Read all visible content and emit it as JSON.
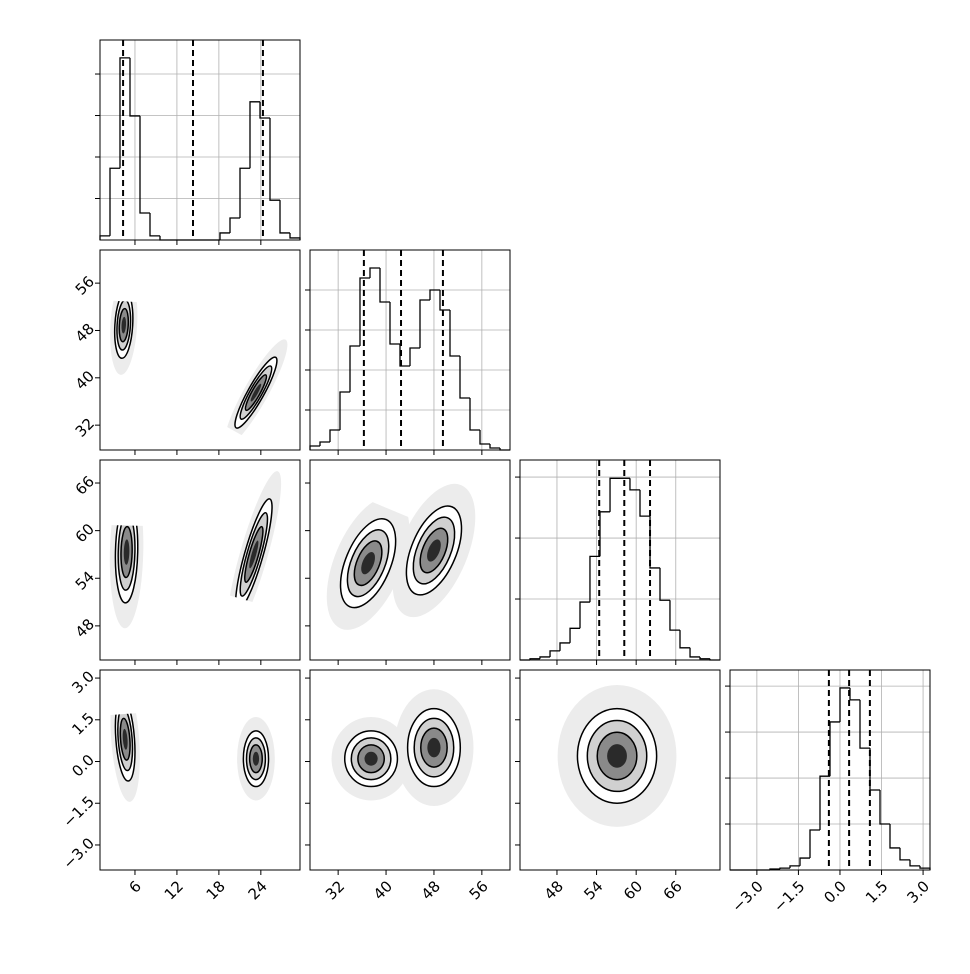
{
  "chart_data": {
    "type": "corner",
    "params": [
      {
        "xlim": [
          1.0,
          29.6
        ],
        "ticks": [
          6,
          12,
          18,
          24
        ],
        "quantiles": [
          4.3,
          14.3,
          24.3
        ],
        "hist": {
          "bins": [
            1.0,
            2.43,
            3.86,
            5.29,
            6.72,
            8.15,
            9.58,
            11.01,
            12.44,
            13.87,
            15.3,
            16.73,
            18.16,
            19.59,
            21.02,
            22.45,
            23.88,
            25.31,
            26.74,
            28.17,
            29.6
          ],
          "counts": [
            0.1,
            1.73,
            4.39,
            2.99,
            0.65,
            0.1,
            0,
            0,
            0,
            0,
            0,
            0,
            0.17,
            0.53,
            1.73,
            3.33,
            2.94,
            0.96,
            0.17,
            0.05
          ],
          "ylim": [
            0,
            4.82
          ],
          "yticks": [
            1,
            2,
            3,
            4
          ]
        }
      },
      {
        "xlim": [
          27.3,
          60.7
        ],
        "ylim": [
          27.8,
          61.6
        ],
        "ticks": [
          32,
          40,
          48,
          56
        ],
        "quantiles": [
          36.3,
          42.5,
          49.5
        ],
        "hist": {
          "bins": [
            27.3,
            28.97,
            30.64,
            32.31,
            33.98,
            35.65,
            37.32,
            38.99,
            40.66,
            42.33,
            44.0,
            45.67,
            47.34,
            49.01,
            50.68,
            52.35,
            54.02,
            55.69,
            57.36,
            59.03,
            60.7
          ],
          "counts": [
            0.1,
            0.2,
            0.5,
            1.45,
            2.6,
            4.3,
            4.55,
            3.7,
            2.65,
            2.1,
            2.55,
            3.75,
            4.0,
            3.5,
            2.35,
            1.3,
            0.5,
            0.15,
            0.05,
            0
          ],
          "ylim": [
            0,
            5
          ],
          "yticks": [
            1,
            2,
            3,
            4
          ]
        }
      },
      {
        "xlim": [
          42.4,
          72.7
        ],
        "ylim": [
          43.7,
          68.9
        ],
        "ticks": [
          48,
          54,
          60,
          66
        ],
        "quantiles": [
          54.4,
          58.2,
          62.1
        ],
        "hist": {
          "bins": [
            42.4,
            43.92,
            45.43,
            46.95,
            48.46,
            49.98,
            51.49,
            53.0,
            54.52,
            56.04,
            57.55,
            59.06,
            60.58,
            62.1,
            63.61,
            65.12,
            66.64,
            68.16,
            69.67,
            71.18,
            72.7
          ],
          "counts": [
            0,
            0.02,
            0.05,
            0.15,
            0.28,
            0.52,
            0.95,
            1.7,
            2.43,
            2.98,
            2.98,
            2.79,
            2.36,
            1.51,
            0.98,
            0.49,
            0.2,
            0.05,
            0.02,
            0
          ],
          "ylim": [
            0,
            3.28
          ],
          "yticks": [
            1,
            2,
            3
          ]
        }
      },
      {
        "xlim": [
          -3.97,
          3.25
        ],
        "ylim": [
          -3.9,
          3.29
        ],
        "ticks": [
          {
            "value": -3,
            "label": "−3.0"
          },
          {
            "value": -1.5,
            "label": "−1.5"
          },
          {
            "value": 0,
            "label": "0.0"
          },
          1.5,
          {
            "value": 3,
            "label": "3.0"
          }
        ],
        "quantiles": [
          -0.4,
          0.33,
          1.08
        ],
        "hist": {
          "bins": [
            -3.97,
            -3.609,
            -3.248,
            -2.887,
            -2.526,
            -2.165,
            -1.804,
            -1.443,
            -1.082,
            -0.721,
            -0.36,
            0.001,
            0.362,
            0.723,
            1.084,
            1.445,
            1.806,
            2.167,
            2.528,
            2.889,
            3.25
          ],
          "counts": [
            0,
            0,
            0,
            0,
            0.02,
            0.04,
            0.09,
            0.26,
            0.87,
            2.04,
            3.22,
            3.96,
            3.7,
            2.65,
            1.74,
            1.0,
            0.48,
            0.22,
            0.09,
            0.04
          ],
          "ylim": [
            0,
            4.35
          ],
          "yticks": [
            1,
            2,
            3,
            4
          ]
        }
      }
    ],
    "pairs": [
      {
        "x_param": 0,
        "y_param": 1,
        "clusters": [
          {
            "x": 4.4,
            "y": 48.9,
            "sx": 0.65,
            "sy": 2.8,
            "rho": 0.2
          },
          {
            "x": 23.3,
            "y": 37.5,
            "sx": 1.5,
            "sy": 3,
            "rho": 0.9
          }
        ]
      },
      {
        "x_param": 0,
        "y_param": 2,
        "clusters": [
          {
            "x": 4.8,
            "y": 57.3,
            "sx": 0.8,
            "sy": 3.2,
            "rho": 0.1
          },
          {
            "x": 23,
            "y": 57,
            "sx": 1.3,
            "sy": 3.5,
            "rho": 0.85
          }
        ]
      },
      {
        "x_param": 0,
        "y_param": 3,
        "clusters": [
          {
            "x": 4.6,
            "y": 0.8,
            "sx": 0.7,
            "sy": 0.75,
            "rho": -0.3
          },
          {
            "x": 23.3,
            "y": 0.1,
            "sx": 0.9,
            "sy": 0.5,
            "rho": 0
          }
        ]
      },
      {
        "x_param": 1,
        "y_param": 2,
        "clusters": [
          {
            "x": 37,
            "y": 55.9,
            "sx": 2.3,
            "sy": 2.8,
            "rho": 0.5
          },
          {
            "x": 48,
            "y": 57.5,
            "sx": 2.3,
            "sy": 2.8,
            "rho": 0.5
          }
        ]
      },
      {
        "x_param": 1,
        "y_param": 3,
        "clusters": [
          {
            "x": 37.5,
            "y": 0.1,
            "sx": 2.2,
            "sy": 0.5,
            "rho": 0
          },
          {
            "x": 48,
            "y": 0.5,
            "sx": 2.2,
            "sy": 0.7,
            "rho": 0
          }
        ]
      },
      {
        "x_param": 2,
        "y_param": 3,
        "clusters": [
          {
            "x": 57.1,
            "y": 0.2,
            "sx": 3,
            "sy": 0.85,
            "rho": 0
          }
        ]
      }
    ],
    "grid": true
  }
}
